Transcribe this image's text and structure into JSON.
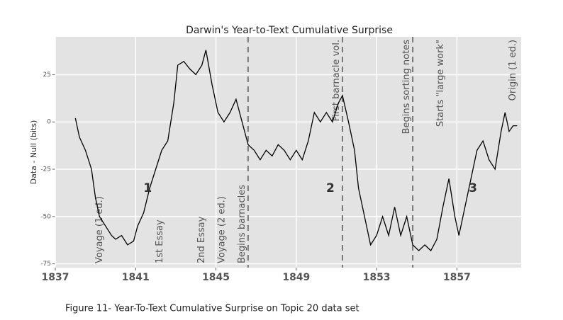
{
  "chart_data": {
    "type": "line",
    "title": "Darwin's Year-to-Text Cumulative Surprise",
    "y_label": "Data - Null (bits)",
    "caption": "Figure 11- Year-To-Text Cumulative Surprise on Topic 20 data set",
    "color": "#000000",
    "grid": true,
    "xlim": [
      1837,
      1860.2
    ],
    "xticks": [
      1837,
      1841,
      1845,
      1849,
      1853,
      1857
    ],
    "ylim": [
      -77,
      45
    ],
    "yticks": [
      -75,
      -50,
      -25,
      0,
      25
    ],
    "x": [
      1838.0,
      1838.2,
      1838.5,
      1838.8,
      1839.0,
      1839.2,
      1839.5,
      1839.8,
      1840.0,
      1840.3,
      1840.6,
      1840.9,
      1841.1,
      1841.4,
      1841.7,
      1842.0,
      1842.3,
      1842.6,
      1842.9,
      1843.1,
      1843.4,
      1843.7,
      1844.0,
      1844.3,
      1844.5,
      1844.8,
      1845.1,
      1845.4,
      1845.7,
      1846.0,
      1846.3,
      1846.6,
      1846.9,
      1847.2,
      1847.5,
      1847.8,
      1848.1,
      1848.4,
      1848.7,
      1849.0,
      1849.3,
      1849.6,
      1849.9,
      1850.2,
      1850.5,
      1850.8,
      1851.1,
      1851.3,
      1851.6,
      1851.9,
      1852.1,
      1852.4,
      1852.7,
      1853.0,
      1853.3,
      1853.6,
      1853.9,
      1854.2,
      1854.5,
      1854.8,
      1855.1,
      1855.4,
      1855.7,
      1856.0,
      1856.3,
      1856.6,
      1856.9,
      1857.1,
      1857.4,
      1857.7,
      1858.0,
      1858.3,
      1858.6,
      1858.9,
      1859.2,
      1859.4,
      1859.6,
      1859.8,
      1860.0
    ],
    "values": [
      2,
      -8,
      -15,
      -25,
      -40,
      -50,
      -55,
      -60,
      -62,
      -60,
      -65,
      -63,
      -55,
      -48,
      -35,
      -25,
      -15,
      -10,
      10,
      30,
      32,
      28,
      25,
      30,
      38,
      20,
      5,
      0,
      5,
      12,
      0,
      -12,
      -15,
      -20,
      -15,
      -18,
      -12,
      -15,
      -20,
      -15,
      -20,
      -10,
      5,
      0,
      5,
      0,
      10,
      14,
      0,
      -15,
      -35,
      -50,
      -65,
      -60,
      -50,
      -60,
      -45,
      -60,
      -50,
      -65,
      -68,
      -65,
      -68,
      -62,
      -45,
      -30,
      -50,
      -60,
      -45,
      -30,
      -15,
      -10,
      -20,
      -25,
      -5,
      5,
      -5,
      -2,
      -2
    ],
    "vlines": [
      1846.6,
      1851.3,
      1854.8
    ],
    "annotations": [
      {
        "text": "Voyage (1 ed.)",
        "x": 1839.2
      },
      {
        "text": "1st Essay",
        "x": 1842.2
      },
      {
        "text": "2nd Essay",
        "x": 1844.3
      },
      {
        "text": "Voyage (2 ed.)",
        "x": 1845.3
      },
      {
        "text": "Begins barnacles",
        "x": 1846.3
      },
      {
        "text": "First barnacle vol.",
        "x": 1851.0
      },
      {
        "text": "Begins sorting notes",
        "x": 1854.5
      },
      {
        "text": "Starts \"large work\"",
        "x": 1856.2
      },
      {
        "text": "Origin (1 ed.)",
        "x": 1859.8
      }
    ],
    "phase_labels": [
      {
        "text": "1",
        "x": 1841.6,
        "y": -35
      },
      {
        "text": "2",
        "x": 1850.7,
        "y": -35
      },
      {
        "text": "3",
        "x": 1857.8,
        "y": -35
      }
    ]
  }
}
